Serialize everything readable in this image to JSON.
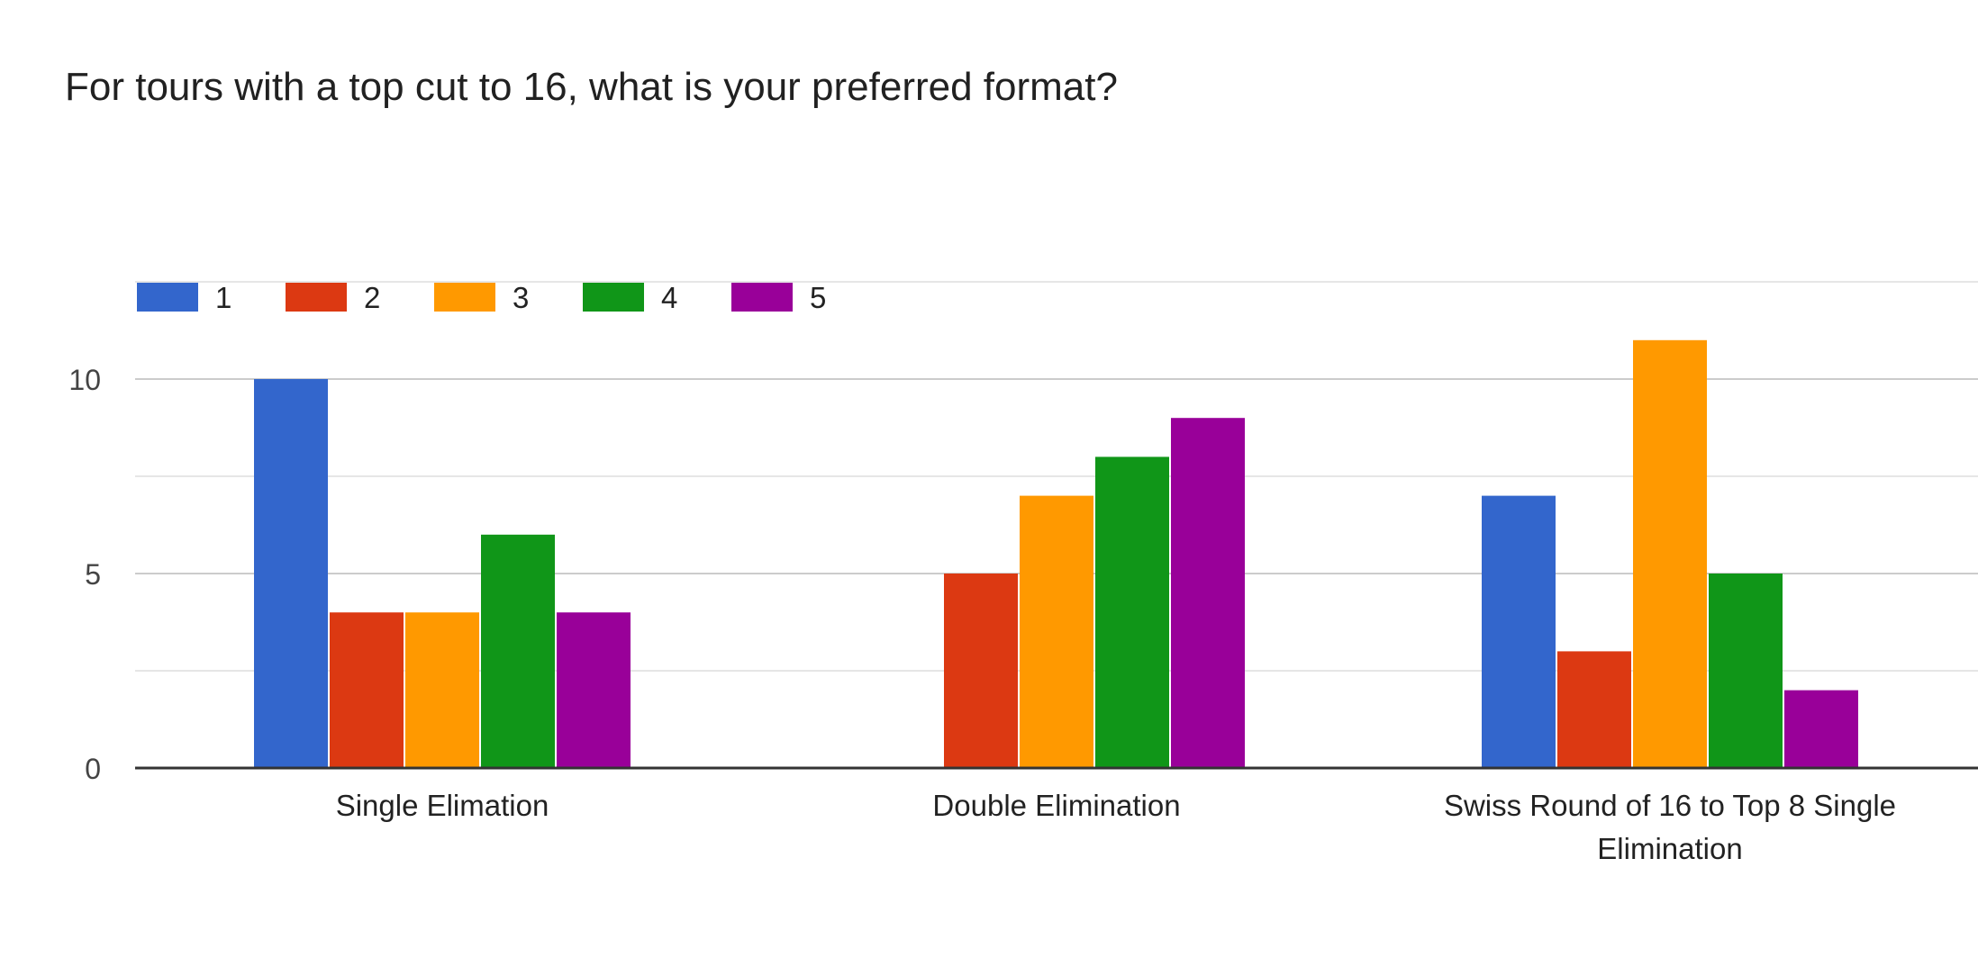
{
  "chart_data": {
    "type": "bar",
    "title": "For tours with a top cut to 16, what is your preferred format?",
    "categories": [
      [
        "Single Elimation"
      ],
      [
        "Double Elimination"
      ],
      [
        "Swiss Round of 16 to Top 8 Single",
        "Elimination"
      ]
    ],
    "series": [
      {
        "name": "1",
        "color": "#3366cc",
        "values": [
          10,
          0,
          7
        ]
      },
      {
        "name": "2",
        "color": "#dc3912",
        "values": [
          4,
          5,
          3
        ]
      },
      {
        "name": "3",
        "color": "#ff9900",
        "values": [
          4,
          7,
          11
        ]
      },
      {
        "name": "4",
        "color": "#109618",
        "values": [
          6,
          8,
          5
        ]
      },
      {
        "name": "5",
        "color": "#990099",
        "values": [
          4,
          9,
          2
        ]
      }
    ],
    "y_ticks": [
      0,
      5,
      10
    ],
    "ylim": [
      0,
      12.5
    ],
    "grid": true,
    "legend_position": "top-left"
  }
}
